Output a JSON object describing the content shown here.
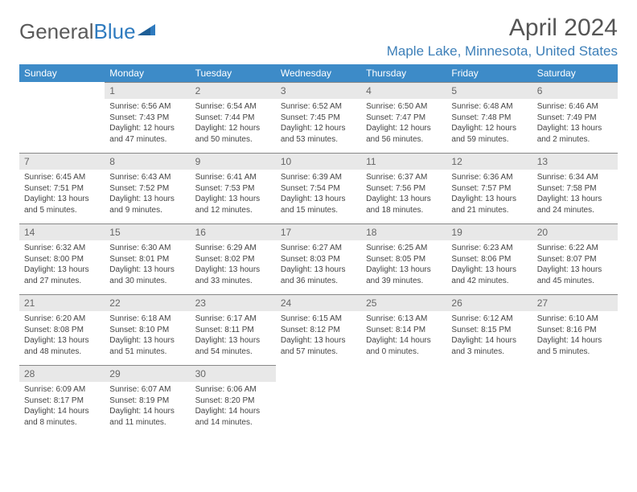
{
  "logo": {
    "text1": "General",
    "text2": "Blue"
  },
  "title": "April 2024",
  "location": "Maple Lake, Minnesota, United States",
  "colors": {
    "header_bg": "#3d8bc8",
    "header_fg": "#ffffff",
    "daynum_bg": "#e8e8e8",
    "accent": "#3d7fb8"
  },
  "weekdays": [
    "Sunday",
    "Monday",
    "Tuesday",
    "Wednesday",
    "Thursday",
    "Friday",
    "Saturday"
  ],
  "weeks": [
    [
      null,
      {
        "n": 1,
        "sunrise": "6:56 AM",
        "sunset": "7:43 PM",
        "daylight": "12 hours and 47 minutes."
      },
      {
        "n": 2,
        "sunrise": "6:54 AM",
        "sunset": "7:44 PM",
        "daylight": "12 hours and 50 minutes."
      },
      {
        "n": 3,
        "sunrise": "6:52 AM",
        "sunset": "7:45 PM",
        "daylight": "12 hours and 53 minutes."
      },
      {
        "n": 4,
        "sunrise": "6:50 AM",
        "sunset": "7:47 PM",
        "daylight": "12 hours and 56 minutes."
      },
      {
        "n": 5,
        "sunrise": "6:48 AM",
        "sunset": "7:48 PM",
        "daylight": "12 hours and 59 minutes."
      },
      {
        "n": 6,
        "sunrise": "6:46 AM",
        "sunset": "7:49 PM",
        "daylight": "13 hours and 2 minutes."
      }
    ],
    [
      {
        "n": 7,
        "sunrise": "6:45 AM",
        "sunset": "7:51 PM",
        "daylight": "13 hours and 5 minutes."
      },
      {
        "n": 8,
        "sunrise": "6:43 AM",
        "sunset": "7:52 PM",
        "daylight": "13 hours and 9 minutes."
      },
      {
        "n": 9,
        "sunrise": "6:41 AM",
        "sunset": "7:53 PM",
        "daylight": "13 hours and 12 minutes."
      },
      {
        "n": 10,
        "sunrise": "6:39 AM",
        "sunset": "7:54 PM",
        "daylight": "13 hours and 15 minutes."
      },
      {
        "n": 11,
        "sunrise": "6:37 AM",
        "sunset": "7:56 PM",
        "daylight": "13 hours and 18 minutes."
      },
      {
        "n": 12,
        "sunrise": "6:36 AM",
        "sunset": "7:57 PM",
        "daylight": "13 hours and 21 minutes."
      },
      {
        "n": 13,
        "sunrise": "6:34 AM",
        "sunset": "7:58 PM",
        "daylight": "13 hours and 24 minutes."
      }
    ],
    [
      {
        "n": 14,
        "sunrise": "6:32 AM",
        "sunset": "8:00 PM",
        "daylight": "13 hours and 27 minutes."
      },
      {
        "n": 15,
        "sunrise": "6:30 AM",
        "sunset": "8:01 PM",
        "daylight": "13 hours and 30 minutes."
      },
      {
        "n": 16,
        "sunrise": "6:29 AM",
        "sunset": "8:02 PM",
        "daylight": "13 hours and 33 minutes."
      },
      {
        "n": 17,
        "sunrise": "6:27 AM",
        "sunset": "8:03 PM",
        "daylight": "13 hours and 36 minutes."
      },
      {
        "n": 18,
        "sunrise": "6:25 AM",
        "sunset": "8:05 PM",
        "daylight": "13 hours and 39 minutes."
      },
      {
        "n": 19,
        "sunrise": "6:23 AM",
        "sunset": "8:06 PM",
        "daylight": "13 hours and 42 minutes."
      },
      {
        "n": 20,
        "sunrise": "6:22 AM",
        "sunset": "8:07 PM",
        "daylight": "13 hours and 45 minutes."
      }
    ],
    [
      {
        "n": 21,
        "sunrise": "6:20 AM",
        "sunset": "8:08 PM",
        "daylight": "13 hours and 48 minutes."
      },
      {
        "n": 22,
        "sunrise": "6:18 AM",
        "sunset": "8:10 PM",
        "daylight": "13 hours and 51 minutes."
      },
      {
        "n": 23,
        "sunrise": "6:17 AM",
        "sunset": "8:11 PM",
        "daylight": "13 hours and 54 minutes."
      },
      {
        "n": 24,
        "sunrise": "6:15 AM",
        "sunset": "8:12 PM",
        "daylight": "13 hours and 57 minutes."
      },
      {
        "n": 25,
        "sunrise": "6:13 AM",
        "sunset": "8:14 PM",
        "daylight": "14 hours and 0 minutes."
      },
      {
        "n": 26,
        "sunrise": "6:12 AM",
        "sunset": "8:15 PM",
        "daylight": "14 hours and 3 minutes."
      },
      {
        "n": 27,
        "sunrise": "6:10 AM",
        "sunset": "8:16 PM",
        "daylight": "14 hours and 5 minutes."
      }
    ],
    [
      {
        "n": 28,
        "sunrise": "6:09 AM",
        "sunset": "8:17 PM",
        "daylight": "14 hours and 8 minutes."
      },
      {
        "n": 29,
        "sunrise": "6:07 AM",
        "sunset": "8:19 PM",
        "daylight": "14 hours and 11 minutes."
      },
      {
        "n": 30,
        "sunrise": "6:06 AM",
        "sunset": "8:20 PM",
        "daylight": "14 hours and 14 minutes."
      },
      null,
      null,
      null,
      null
    ]
  ]
}
